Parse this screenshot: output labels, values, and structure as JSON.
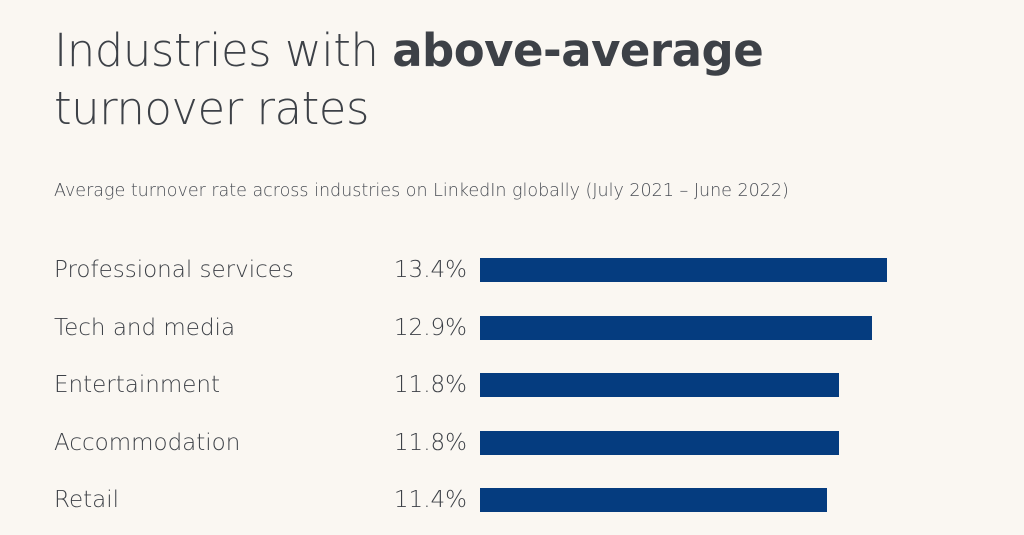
{
  "header": {
    "title_regular": "Industries with ",
    "title_bold": "above-average",
    "title_line2": "turnover rates",
    "subtitle": "Average turnover rate across industries on LinkedIn globally (July 2021 – June 2022)"
  },
  "colors": {
    "background": "#faf7f2",
    "bar": "#053c7f",
    "text": "#3d4147"
  },
  "chart_data": {
    "type": "bar",
    "orientation": "horizontal",
    "title": "Industries with above-average turnover rates",
    "subtitle": "Average turnover rate across industries on LinkedIn globally (July 2021 – June 2022)",
    "categories": [
      "Professional services",
      "Tech and media",
      "Entertainment",
      "Accommodation",
      "Retail"
    ],
    "values": [
      13.4,
      12.9,
      11.8,
      11.8,
      11.4
    ],
    "value_labels": [
      "13.4%",
      "12.9%",
      "11.8%",
      "11.8%",
      "11.4%"
    ],
    "unit": "%",
    "xlabel": "",
    "ylabel": "",
    "grid": false,
    "legend": "none"
  }
}
